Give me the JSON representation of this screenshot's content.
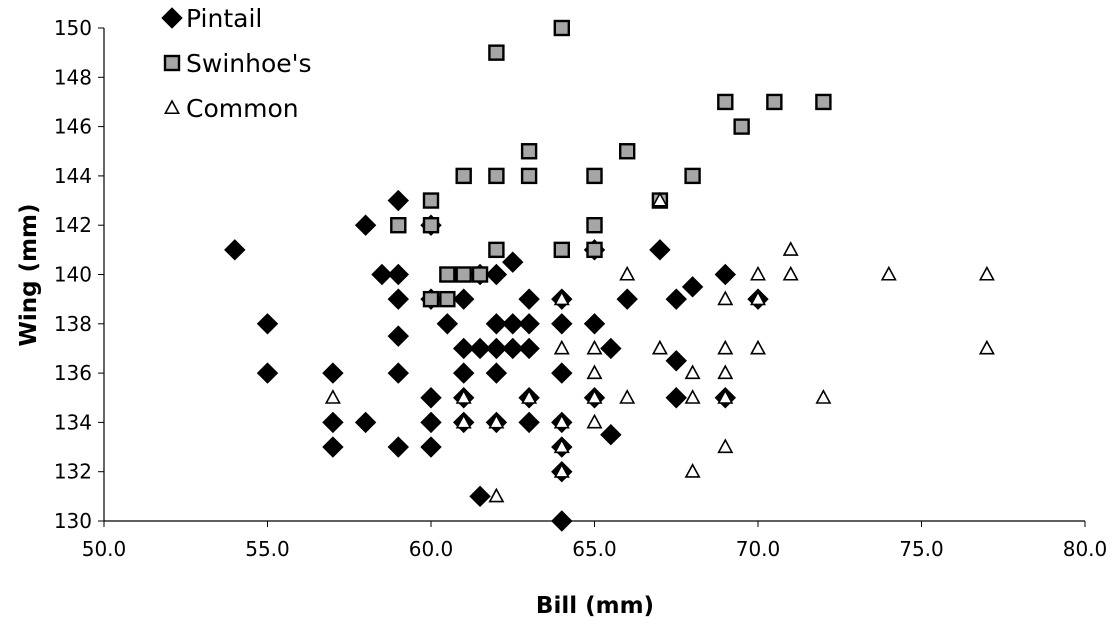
{
  "chart_data": {
    "type": "scatter",
    "title": "",
    "xlabel": "Bill (mm)",
    "ylabel": "Wing (mm)",
    "xlim": [
      50,
      80
    ],
    "ylim": [
      130,
      150
    ],
    "x_ticks": [
      "50.0",
      "55.0",
      "60.0",
      "65.0",
      "70.0",
      "75.0",
      "80.0"
    ],
    "y_ticks": [
      "130",
      "132",
      "134",
      "136",
      "138",
      "140",
      "142",
      "144",
      "146",
      "148",
      "150"
    ],
    "grid": false,
    "legend_position": "top-left",
    "series": [
      {
        "name": "Pintail",
        "marker": "diamond",
        "color": "#000000",
        "points": [
          [
            54,
            141
          ],
          [
            55,
            138
          ],
          [
            55,
            136
          ],
          [
            57,
            136
          ],
          [
            57,
            134
          ],
          [
            57,
            133
          ],
          [
            58,
            142
          ],
          [
            58,
            134
          ],
          [
            58.5,
            140
          ],
          [
            59,
            143
          ],
          [
            59,
            140
          ],
          [
            59,
            139
          ],
          [
            59,
            137.5
          ],
          [
            59,
            136
          ],
          [
            59,
            133
          ],
          [
            60,
            142
          ],
          [
            60,
            139
          ],
          [
            60,
            135
          ],
          [
            60,
            134
          ],
          [
            60,
            133
          ],
          [
            60.5,
            138
          ],
          [
            61,
            139
          ],
          [
            61,
            137
          ],
          [
            61,
            136
          ],
          [
            61,
            135
          ],
          [
            61,
            134
          ],
          [
            61.5,
            140
          ],
          [
            61.5,
            137
          ],
          [
            61.5,
            131
          ],
          [
            62,
            140
          ],
          [
            62,
            138
          ],
          [
            62,
            137
          ],
          [
            62,
            136
          ],
          [
            62,
            134
          ],
          [
            62.5,
            140.5
          ],
          [
            62.5,
            138
          ],
          [
            62.5,
            137
          ],
          [
            63,
            139
          ],
          [
            63,
            138
          ],
          [
            63,
            137
          ],
          [
            63,
            135
          ],
          [
            63,
            134
          ],
          [
            64,
            139
          ],
          [
            64,
            138
          ],
          [
            64,
            136
          ],
          [
            64,
            134
          ],
          [
            64,
            133
          ],
          [
            64,
            132
          ],
          [
            64,
            130
          ],
          [
            65,
            141
          ],
          [
            65,
            138
          ],
          [
            65,
            135
          ],
          [
            65.5,
            137
          ],
          [
            65.5,
            133.5
          ],
          [
            66,
            139
          ],
          [
            67,
            141
          ],
          [
            67.5,
            139
          ],
          [
            67.5,
            136.5
          ],
          [
            67.5,
            135
          ],
          [
            68,
            139.5
          ],
          [
            69,
            140
          ],
          [
            69,
            135
          ],
          [
            70,
            139
          ]
        ]
      },
      {
        "name": "Swinhoe's",
        "marker": "square",
        "color": "#a6a6a6",
        "points": [
          [
            59,
            142
          ],
          [
            60,
            143
          ],
          [
            60,
            142
          ],
          [
            60,
            139
          ],
          [
            60.5,
            140
          ],
          [
            60.5,
            139
          ],
          [
            61,
            144
          ],
          [
            61,
            140
          ],
          [
            61.5,
            140
          ],
          [
            62,
            149
          ],
          [
            62,
            144
          ],
          [
            62,
            141
          ],
          [
            63,
            145
          ],
          [
            63,
            144
          ],
          [
            64,
            150
          ],
          [
            64,
            141
          ],
          [
            65,
            144
          ],
          [
            65,
            142
          ],
          [
            65,
            141
          ],
          [
            66,
            145
          ],
          [
            67,
            143
          ],
          [
            68,
            144
          ],
          [
            69,
            147
          ],
          [
            69.5,
            146
          ],
          [
            70.5,
            147
          ],
          [
            72,
            147
          ]
        ]
      },
      {
        "name": "Common",
        "marker": "triangle",
        "color": "#ffffff",
        "points": [
          [
            57,
            135
          ],
          [
            61,
            135
          ],
          [
            61,
            134
          ],
          [
            62,
            134
          ],
          [
            62,
            131
          ],
          [
            63,
            135
          ],
          [
            64,
            139
          ],
          [
            64,
            137
          ],
          [
            64,
            134
          ],
          [
            64,
            133
          ],
          [
            64,
            132
          ],
          [
            65,
            137
          ],
          [
            65,
            136
          ],
          [
            65,
            135
          ],
          [
            65,
            134
          ],
          [
            66,
            140
          ],
          [
            66,
            135
          ],
          [
            67,
            143
          ],
          [
            67,
            137
          ],
          [
            68,
            136
          ],
          [
            68,
            135
          ],
          [
            68,
            132
          ],
          [
            69,
            139
          ],
          [
            69,
            137
          ],
          [
            69,
            136
          ],
          [
            69,
            135
          ],
          [
            69,
            133
          ],
          [
            70,
            140
          ],
          [
            70,
            139
          ],
          [
            70,
            137
          ],
          [
            71,
            141
          ],
          [
            71,
            140
          ],
          [
            72,
            135
          ],
          [
            74,
            140
          ],
          [
            77,
            140
          ],
          [
            77,
            137
          ]
        ]
      }
    ]
  }
}
